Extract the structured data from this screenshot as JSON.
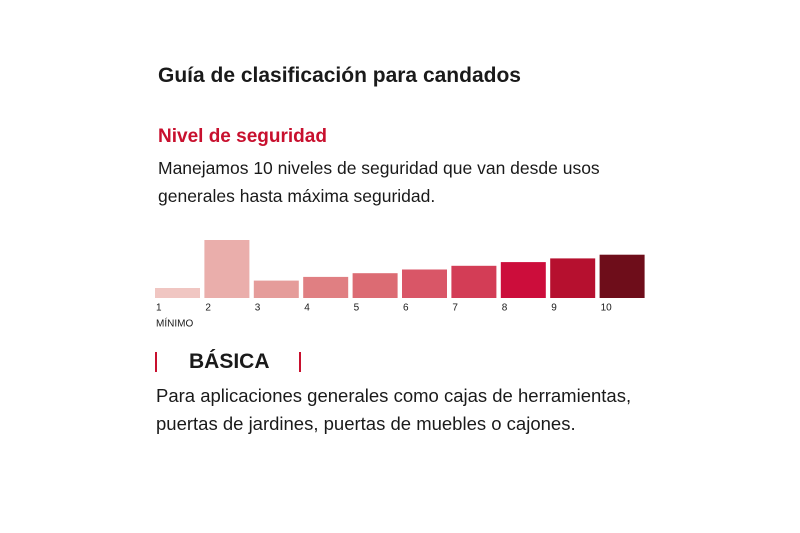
{
  "header": {
    "title": "Guía de clasificación para candados"
  },
  "section": {
    "title": "Nivel de seguridad",
    "description": [
      "Manejamos 10 niveles de seguridad que van desde usos",
      "generales hasta máxima seguridad."
    ]
  },
  "scale": {
    "levels": [
      {
        "label": "1",
        "color": "#f0c6c2"
      },
      {
        "label": "2",
        "color": "#eaaeab"
      },
      {
        "label": "3",
        "color": "#e59c9a"
      },
      {
        "label": "4",
        "color": "#e07f82"
      },
      {
        "label": "5",
        "color": "#dc6b73"
      },
      {
        "label": "6",
        "color": "#d95667"
      },
      {
        "label": "7",
        "color": "#d33d56"
      },
      {
        "label": "8",
        "color": "#cc0d3b"
      },
      {
        "label": "9",
        "color": "#b6102f"
      },
      {
        "label": "10",
        "color": "#6e0d1a"
      }
    ],
    "highlighted": 1,
    "min_label": "MÍNIMO"
  },
  "category": {
    "name": "BÁSICA",
    "description": [
      "Para aplicaciones generales como cajas de herramientas,",
      "puertas de jardines, puertas de muebles o cajones."
    ]
  }
}
